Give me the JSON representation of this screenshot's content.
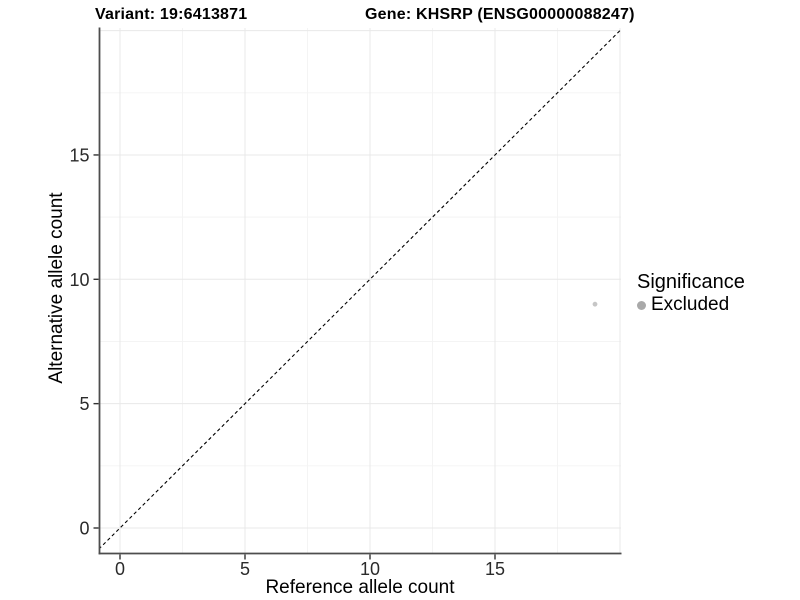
{
  "header": {
    "title_left": "Variant: 19:6413871",
    "title_right": "Gene: KHSRP (ENSG00000088247)"
  },
  "legend": {
    "title": "Significance"
  },
  "colors": {
    "background": "#ffffff",
    "grid_major": "#e8e8e8",
    "grid_minor": "#f3f3f3",
    "axis_line": "#4d4d4d",
    "tick_mark": "#333333",
    "tick_label": "#2b2b2b",
    "reference_line": "#000000"
  },
  "chart_data": {
    "type": "scatter",
    "title_left": "Variant: 19:6413871",
    "title_right": "Gene: KHSRP (ENSG00000088247)",
    "xlabel": "Reference allele count",
    "ylabel": "Alternative allele count",
    "xlim": [
      -0.85,
      20.05
    ],
    "ylim": [
      -1.05,
      20.1
    ],
    "x_major_ticks": [
      0,
      5,
      10,
      15
    ],
    "y_major_ticks": [
      0,
      5,
      10,
      15
    ],
    "x_major_grid": [
      0,
      5,
      10,
      15,
      20
    ],
    "y_major_grid": [
      0,
      5,
      10,
      15,
      20
    ],
    "x_minor_grid": [
      2.5,
      7.5,
      12.5,
      17.5
    ],
    "y_minor_grid": [
      2.5,
      7.5,
      12.5,
      17.5
    ],
    "grid": true,
    "legend_position": "right",
    "legend_title": "Significance",
    "series": [
      {
        "name": "Excluded",
        "point_color": "#c6c6c6",
        "legend_key_color": "#a9a9a9",
        "points": [
          {
            "x": 19,
            "y": 9
          }
        ]
      }
    ],
    "reference_line": {
      "kind": "identity",
      "x1": -0.85,
      "y1": -0.85,
      "x2": 20.05,
      "y2": 20.05,
      "style": "dashed",
      "color": "#000000"
    }
  }
}
